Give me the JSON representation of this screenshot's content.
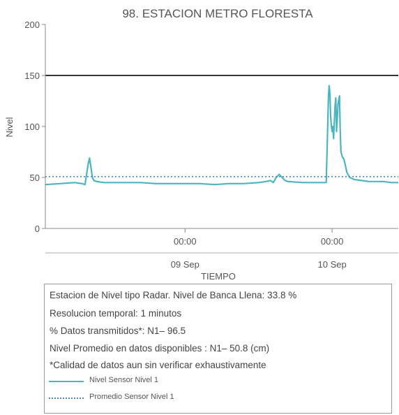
{
  "chart_data": {
    "type": "line",
    "title": "98. ESTACION METRO FLORESTA",
    "xlabel": "TIEMPO",
    "ylabel": "Nivel",
    "ylim": [
      0,
      200
    ],
    "yticks": [
      0,
      50,
      100,
      150,
      200
    ],
    "xlim": [
      -0.95,
      1.45
    ],
    "xticks": [
      {
        "x": 0,
        "time": "00:00",
        "date": "09 Sep"
      },
      {
        "x": 1,
        "time": "00:00",
        "date": "10 Sep"
      }
    ],
    "reference_line": {
      "value": 150,
      "color": "#333333"
    },
    "series": [
      {
        "name": "Nivel Sensor Nivel 1",
        "color": "#4bb5c1",
        "style": "solid",
        "x": [
          -0.95,
          -0.85,
          -0.75,
          -0.7,
          -0.68,
          -0.66,
          -0.65,
          -0.64,
          -0.63,
          -0.62,
          -0.6,
          -0.55,
          -0.5,
          -0.4,
          -0.3,
          -0.2,
          -0.1,
          0,
          0.1,
          0.2,
          0.3,
          0.4,
          0.5,
          0.55,
          0.58,
          0.6,
          0.62,
          0.64,
          0.66,
          0.68,
          0.7,
          0.8,
          0.9,
          0.96,
          0.97,
          0.975,
          0.98,
          0.985,
          0.99,
          0.995,
          1,
          1.005,
          1.01,
          1.02,
          1.025,
          1.03,
          1.04,
          1.05,
          1.055,
          1.06,
          1.07,
          1.08,
          1.09,
          1.1,
          1.12,
          1.15,
          1.2,
          1.25,
          1.3,
          1.35,
          1.4,
          1.45
        ],
        "values": [
          43,
          44,
          45,
          44,
          43,
          62,
          69,
          60,
          50,
          47,
          46,
          45,
          45,
          45,
          45,
          44,
          44,
          44,
          44,
          43,
          44,
          44,
          45,
          46,
          47,
          45,
          50,
          53,
          50,
          47,
          46,
          45,
          45,
          45,
          100,
          130,
          140,
          132,
          110,
          100,
          95,
          100,
          88,
          120,
          128,
          95,
          122,
          130,
          97,
          75,
          70,
          68,
          62,
          55,
          50,
          48,
          47,
          46,
          46,
          46,
          45,
          45
        ]
      },
      {
        "name": "Promedio Sensor Nivel 1",
        "color": "#4a86b9",
        "style": "dotted",
        "x": [
          -0.95,
          1.45
        ],
        "values": [
          50.8,
          50.8
        ]
      }
    ],
    "legend_position": "bottom"
  },
  "info": {
    "lines": [
      "Estacion de Nivel tipo Radar. Nivel de Banca Llena: 33.8 %",
      "Resolucion temporal: 1 minutos",
      "% Datos transmitidos*: N1– 96.5",
      "Nivel Promedio en datos disponibles : N1– 50.8 (cm)",
      "*Calidad de datos aun sin verificar exhaustivamente"
    ]
  }
}
